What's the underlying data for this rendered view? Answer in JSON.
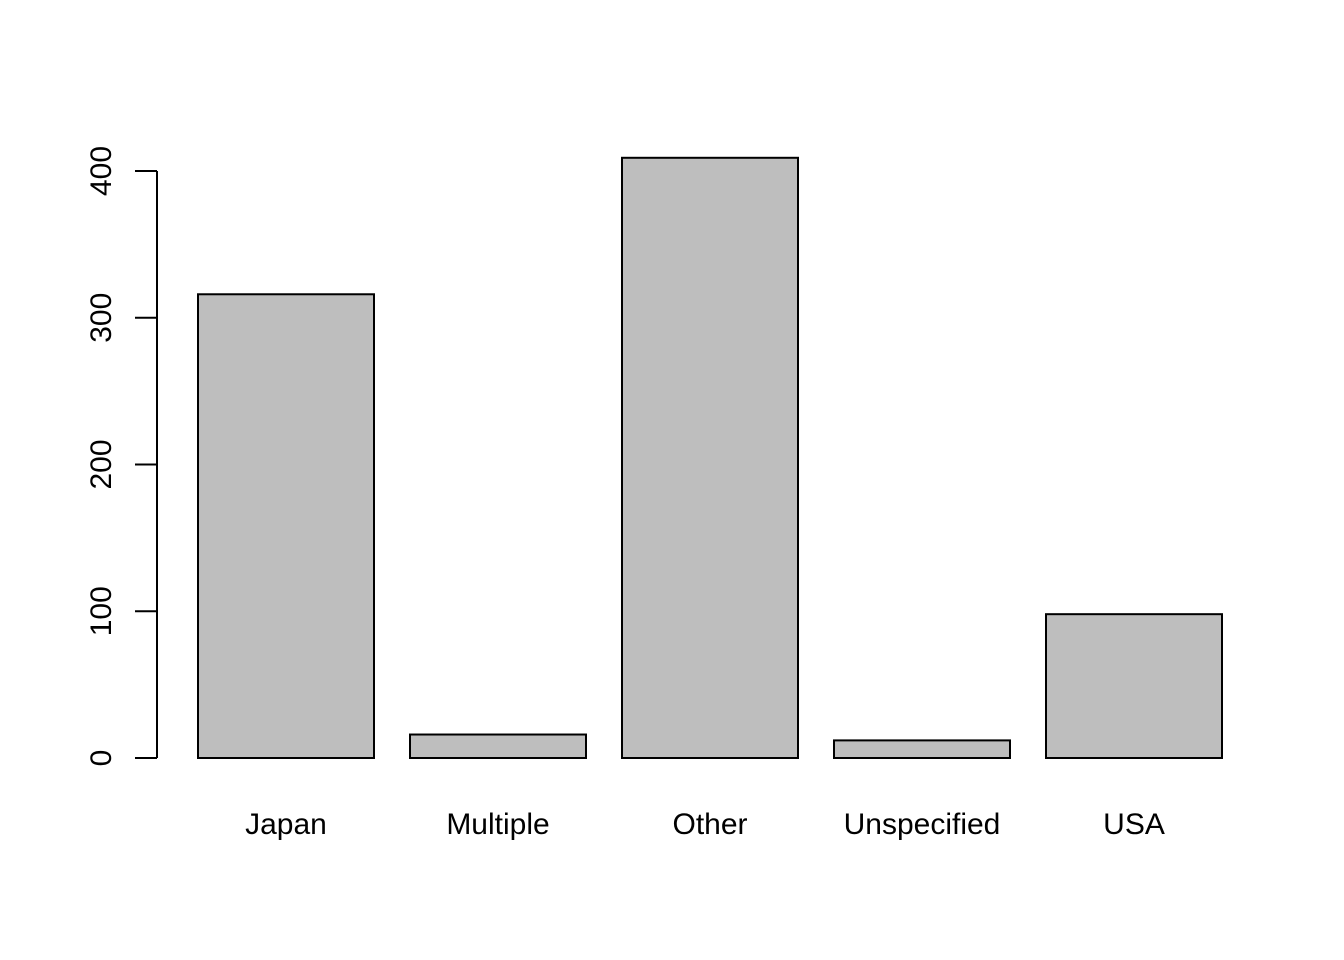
{
  "chart_data": {
    "type": "bar",
    "title": "",
    "xlabel": "",
    "ylabel": "",
    "categories": [
      "Japan",
      "Multiple",
      "Other",
      "Unspecified",
      "USA"
    ],
    "values": [
      316,
      16,
      409,
      12,
      98
    ],
    "ylim": [
      0,
      420
    ],
    "y_ticks": [
      0,
      100,
      200,
      300,
      400
    ],
    "y_tick_labels": [
      "0",
      "100",
      "200",
      "300",
      "400"
    ],
    "grid": false,
    "legend": "none",
    "colors": {
      "bar_fill": "#bebebe",
      "bar_stroke": "#000000",
      "axis": "#000000",
      "background": "#ffffff"
    }
  }
}
